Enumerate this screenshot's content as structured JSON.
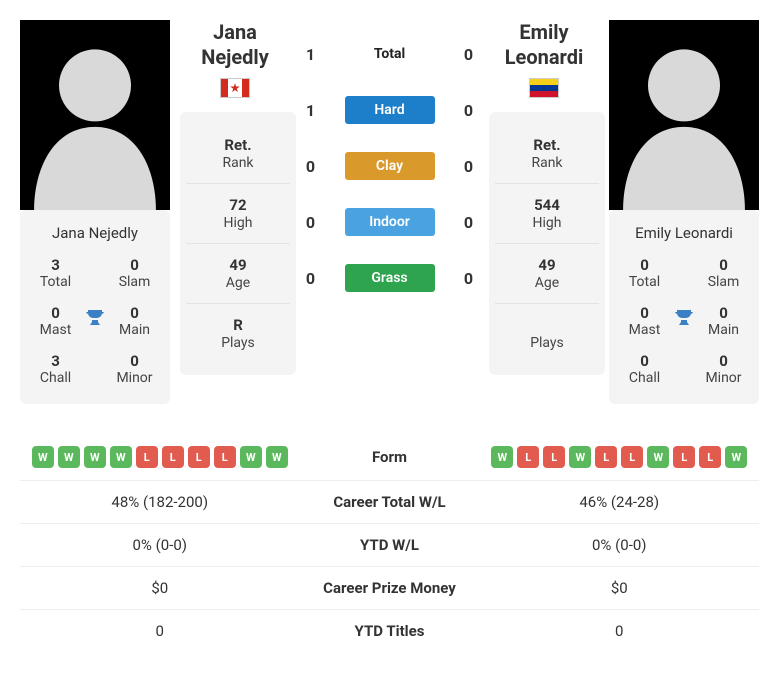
{
  "player1": {
    "name": "Jana Nejedly",
    "flag": "ca",
    "card": {
      "total": {
        "num": "3",
        "lbl": "Total"
      },
      "slam": {
        "num": "0",
        "lbl": "Slam"
      },
      "mast": {
        "num": "0",
        "lbl": "Mast"
      },
      "main": {
        "num": "0",
        "lbl": "Main"
      },
      "chall": {
        "num": "3",
        "lbl": "Chall"
      },
      "minor": {
        "num": "0",
        "lbl": "Minor"
      }
    },
    "rank": {
      "ret": {
        "num": "Ret.",
        "lbl": "Rank"
      },
      "high": {
        "num": "72",
        "lbl": "High"
      },
      "age": {
        "num": "49",
        "lbl": "Age"
      },
      "plays": {
        "num": "R",
        "lbl": "Plays"
      }
    }
  },
  "player2": {
    "name": "Emily Leonardi",
    "flag": "ve",
    "card": {
      "total": {
        "num": "0",
        "lbl": "Total"
      },
      "slam": {
        "num": "0",
        "lbl": "Slam"
      },
      "mast": {
        "num": "0",
        "lbl": "Mast"
      },
      "main": {
        "num": "0",
        "lbl": "Main"
      },
      "chall": {
        "num": "0",
        "lbl": "Chall"
      },
      "minor": {
        "num": "0",
        "lbl": "Minor"
      }
    },
    "rank": {
      "ret": {
        "num": "Ret.",
        "lbl": "Rank"
      },
      "high": {
        "num": "544",
        "lbl": "High"
      },
      "age": {
        "num": "49",
        "lbl": "Age"
      },
      "plays": {
        "num": "",
        "lbl": "Plays"
      }
    }
  },
  "h2h": {
    "total": {
      "p1": "1",
      "label": "Total",
      "p2": "0",
      "cls": "plain"
    },
    "hard": {
      "p1": "1",
      "label": "Hard",
      "p2": "0",
      "cls": "hard"
    },
    "clay": {
      "p1": "0",
      "label": "Clay",
      "p2": "0",
      "cls": "clay"
    },
    "indoor": {
      "p1": "0",
      "label": "Indoor",
      "p2": "0",
      "cls": "indoor"
    },
    "grass": {
      "p1": "0",
      "label": "Grass",
      "p2": "0",
      "cls": "grass"
    }
  },
  "form": {
    "p1": [
      "W",
      "W",
      "W",
      "W",
      "L",
      "L",
      "L",
      "L",
      "W",
      "W"
    ],
    "p2": [
      "W",
      "L",
      "L",
      "W",
      "L",
      "L",
      "W",
      "L",
      "L",
      "W"
    ],
    "label": "Form"
  },
  "stats": {
    "career_wl": {
      "p1": "48% (182-200)",
      "label": "Career Total W/L",
      "p2": "46% (24-28)"
    },
    "ytd_wl": {
      "p1": "0% (0-0)",
      "label": "YTD W/L",
      "p2": "0% (0-0)"
    },
    "prize": {
      "p1": "$0",
      "label": "Career Prize Money",
      "p2": "$0"
    },
    "ytd_titles": {
      "p1": "0",
      "label": "YTD Titles",
      "p2": "0"
    }
  }
}
